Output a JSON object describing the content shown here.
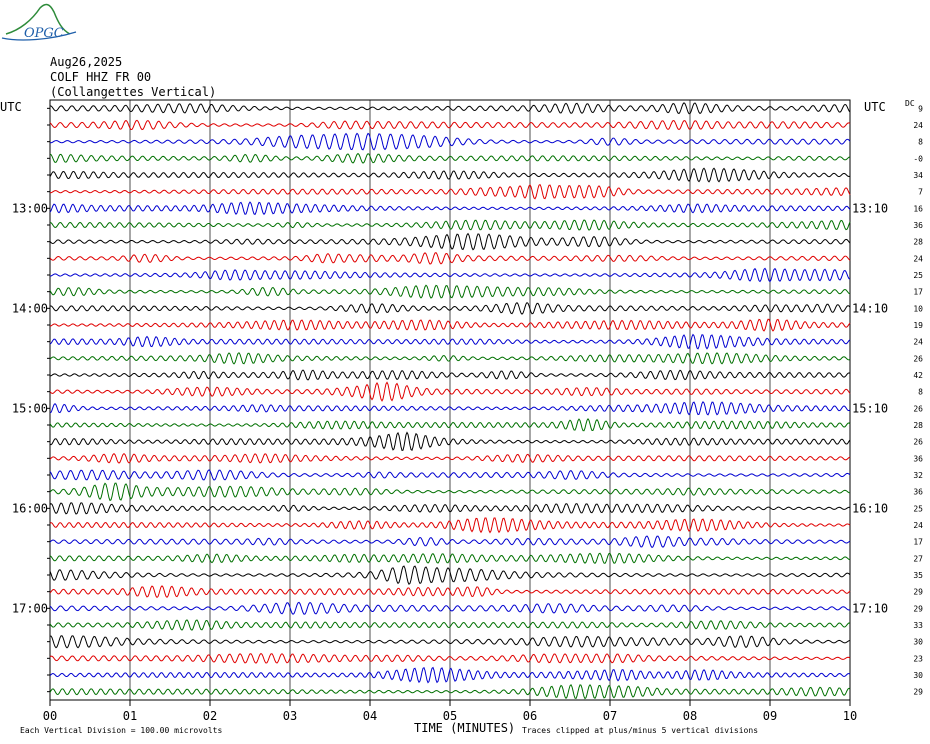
{
  "logo": {
    "text": "OPGC",
    "colors": {
      "mountain": "#2e8b3a",
      "swoosh": "#1f5faa"
    }
  },
  "header": {
    "date": "Aug26,2025",
    "station": "COLF HHZ FR 00",
    "location": "(Collangettes Vertical)"
  },
  "labels": {
    "utc_left": "UTC",
    "utc_right": "UTC",
    "dc": "DC",
    "xlabel": "TIME (MINUTES)",
    "scale_note": "Each Vertical Division =  100.00 microvolts",
    "clip_note": "Traces clipped at plus/minus 5 vertical divisions"
  },
  "chart_data": {
    "type": "line",
    "title": "",
    "xlabel": "TIME (MINUTES)",
    "x_ticks": [
      "00",
      "01",
      "02",
      "03",
      "04",
      "05",
      "06",
      "07",
      "08",
      "09",
      "10"
    ],
    "xlim": [
      0,
      10
    ],
    "trace_colors": [
      "#000000",
      "#e00000",
      "#0000d0",
      "#007000"
    ],
    "left_time_labels": [
      {
        "row": 6,
        "label": "13:00"
      },
      {
        "row": 12,
        "label": "14:00"
      },
      {
        "row": 18,
        "label": "15:00"
      },
      {
        "row": 24,
        "label": "16:00"
      },
      {
        "row": 30,
        "label": "17:00"
      }
    ],
    "right_time_labels": [
      {
        "row": 6,
        "label": "13:10"
      },
      {
        "row": 12,
        "label": "14:10"
      },
      {
        "row": 18,
        "label": "15:10"
      },
      {
        "row": 24,
        "label": "16:10"
      },
      {
        "row": 30,
        "label": "17:10"
      }
    ],
    "dc_offsets": [
      "9",
      "24",
      "8",
      "-0",
      "34",
      "7",
      "16",
      "36",
      "28",
      "24",
      "25",
      "17",
      "10",
      "19",
      "24",
      "26",
      "42",
      "8",
      "26",
      "28",
      "26",
      "36",
      "32",
      "36",
      "25",
      "24",
      "17",
      "27",
      "35",
      "29",
      "29",
      "33",
      "30",
      "23",
      "30",
      "29"
    ],
    "grid": true
  }
}
